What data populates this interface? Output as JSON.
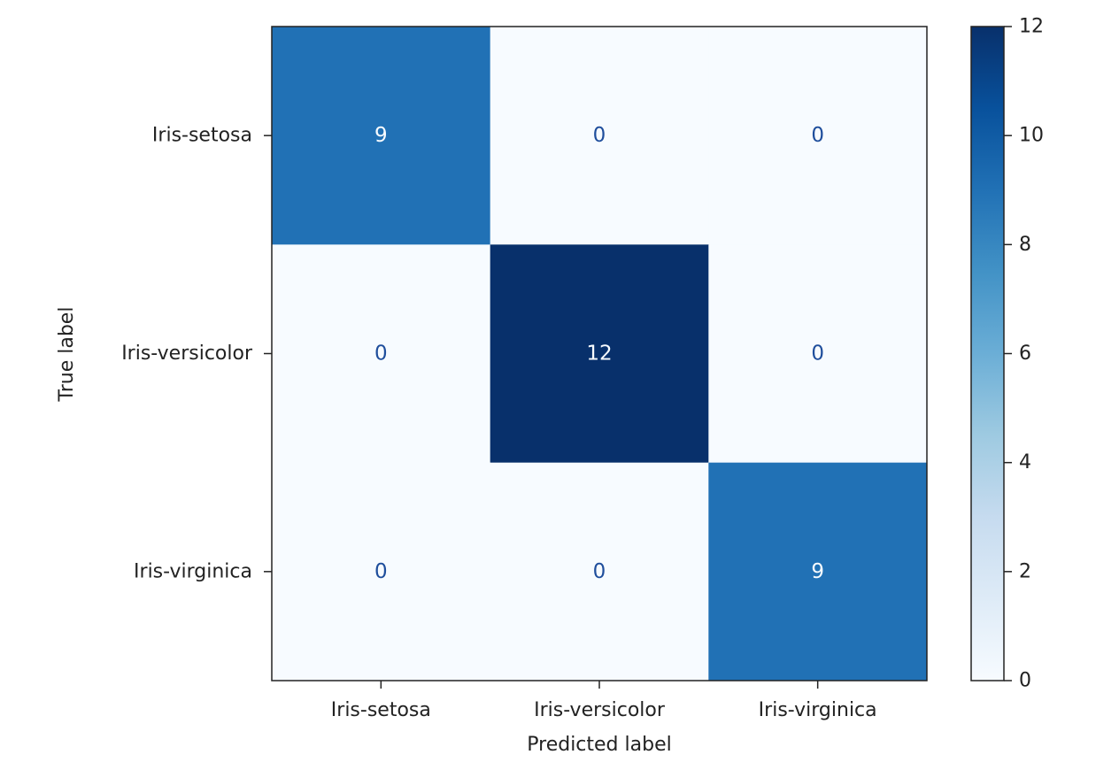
{
  "chart_data": {
    "type": "heatmap",
    "title": "",
    "xlabel": "Predicted label",
    "ylabel": "True label",
    "x_categories": [
      "Iris-setosa",
      "Iris-versicolor",
      "Iris-virginica"
    ],
    "y_categories": [
      "Iris-setosa",
      "Iris-versicolor",
      "Iris-virginica"
    ],
    "matrix": [
      [
        9,
        0,
        0
      ],
      [
        0,
        12,
        0
      ],
      [
        0,
        0,
        9
      ]
    ],
    "colorbar": {
      "min": 0,
      "max": 12,
      "ticks": [
        0,
        2,
        4,
        6,
        8,
        10,
        12
      ]
    },
    "colormap": "Blues",
    "colors": {
      "low": "#f7fbff",
      "mid": "#6baed6",
      "high": "#08306b",
      "cell_text_light": "#f7fbff",
      "cell_text_dark": "#1f4e9c"
    },
    "grid": false
  }
}
